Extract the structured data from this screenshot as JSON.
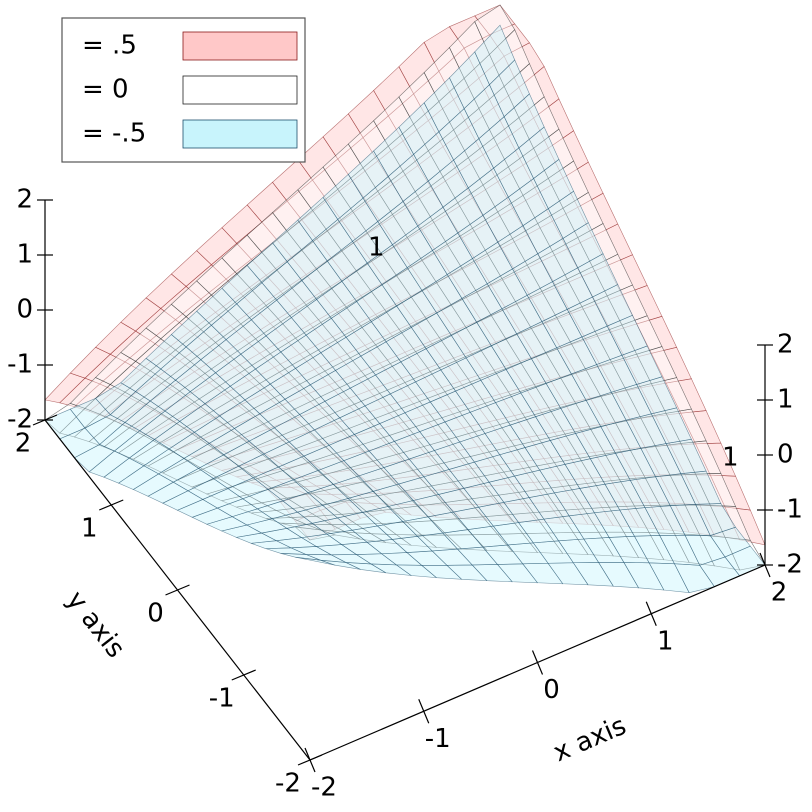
{
  "chart_data": {
    "type": "surface",
    "series": [
      {
        "name": "= .5",
        "color": "#ffc8c8",
        "edgecolor": "#8b1a1a"
      },
      {
        "name": "= 0",
        "color": "#ffffff",
        "edgecolor": "#222222"
      },
      {
        "name": "= -.5",
        "color": "#c8f4fc",
        "edgecolor": "#1d4f6b"
      }
    ],
    "xlabel": "x axis",
    "ylabel": "y axis",
    "xlim": [
      -2,
      2
    ],
    "ylim": [
      -2,
      2
    ],
    "zlim": [
      -2,
      2
    ],
    "xticks": [
      -2,
      -1,
      0,
      1,
      2
    ],
    "yticks": [
      -2,
      -1,
      0,
      1,
      2
    ],
    "zticks": [
      -2,
      -1,
      0,
      1,
      2
    ],
    "annotations": [
      "1",
      "1"
    ]
  }
}
